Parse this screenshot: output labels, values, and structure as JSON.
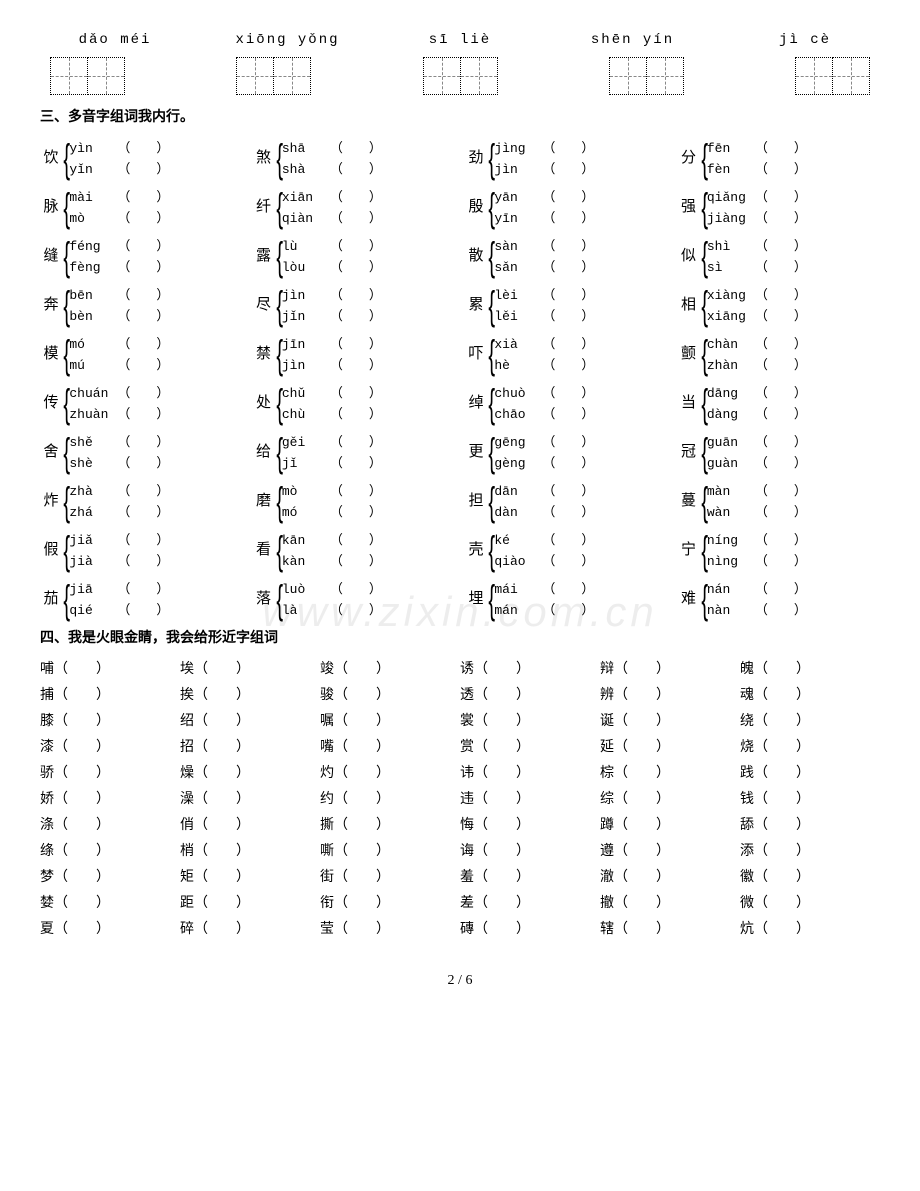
{
  "pinyin_boxes": [
    {
      "pinyin": "dǎo méi",
      "cells": 2
    },
    {
      "pinyin": "xiōng yǒng",
      "cells": 2
    },
    {
      "pinyin": "sī  liè",
      "cells": 2
    },
    {
      "pinyin": "shēn  yín",
      "cells": 2
    },
    {
      "pinyin": "jì   cè",
      "cells": 2
    }
  ],
  "section3_title": "三、多音字组词我内行。",
  "polyphonic_rows": [
    [
      {
        "char": "饮",
        "r": [
          "yìn",
          "yǐn"
        ]
      },
      {
        "char": "煞",
        "r": [
          "shā",
          "shà"
        ]
      },
      {
        "char": "劲",
        "r": [
          "jìng",
          "jìn"
        ]
      },
      {
        "char": "分",
        "r": [
          "fēn",
          "fèn"
        ]
      }
    ],
    [
      {
        "char": "脉",
        "r": [
          "mài",
          "mò"
        ]
      },
      {
        "char": "纤",
        "r": [
          "xiān",
          "qiàn"
        ]
      },
      {
        "char": "殷",
        "r": [
          "yān",
          "yīn"
        ]
      },
      {
        "char": "强",
        "r": [
          "qiǎng",
          "jiàng"
        ]
      }
    ],
    [
      {
        "char": "缝",
        "r": [
          "féng",
          "fèng"
        ]
      },
      {
        "char": "露",
        "r": [
          "lù",
          "lòu"
        ]
      },
      {
        "char": "散",
        "r": [
          "sàn",
          "sǎn"
        ]
      },
      {
        "char": "似",
        "r": [
          "shì",
          "sì"
        ]
      }
    ],
    [
      {
        "char": "奔",
        "r": [
          "bēn",
          "bèn"
        ]
      },
      {
        "char": "尽",
        "r": [
          "jìn",
          "jǐn"
        ]
      },
      {
        "char": "累",
        "r": [
          "lèi",
          "lěi"
        ]
      },
      {
        "char": "相",
        "r": [
          "xiàng",
          "xiāng"
        ]
      }
    ],
    [
      {
        "char": "模",
        "r": [
          "mó",
          "mú"
        ]
      },
      {
        "char": "禁",
        "r": [
          "jīn",
          "jìn"
        ]
      },
      {
        "char": "吓",
        "r": [
          "xià",
          "hè"
        ]
      },
      {
        "char": "颤",
        "r": [
          "chàn",
          "zhàn"
        ]
      }
    ],
    [
      {
        "char": "传",
        "r": [
          "chuán",
          "zhuàn"
        ]
      },
      {
        "char": "处",
        "r": [
          "chǔ",
          "chù"
        ]
      },
      {
        "char": "绰",
        "r": [
          "chuò",
          "chāo"
        ]
      },
      {
        "char": "当",
        "r": [
          "dāng",
          "dàng"
        ]
      }
    ],
    [
      {
        "char": "舍",
        "r": [
          "shě",
          "shè"
        ]
      },
      {
        "char": "给",
        "r": [
          "gěi",
          "jǐ"
        ]
      },
      {
        "char": "更",
        "r": [
          "gēng",
          "gèng"
        ]
      },
      {
        "char": "冠",
        "r": [
          "guān",
          "guàn"
        ]
      }
    ],
    [
      {
        "char": "炸",
        "r": [
          "zhà",
          "zhá"
        ]
      },
      {
        "char": "磨",
        "r": [
          "mò",
          "mó"
        ]
      },
      {
        "char": "担",
        "r": [
          "dān",
          "dàn"
        ]
      },
      {
        "char": "蔓",
        "r": [
          "màn",
          "wàn"
        ]
      }
    ],
    [
      {
        "char": "假",
        "r": [
          "jiǎ",
          "jià"
        ]
      },
      {
        "char": "看",
        "r": [
          "kān",
          "kàn"
        ]
      },
      {
        "char": "壳",
        "r": [
          "ké",
          "qiào"
        ]
      },
      {
        "char": "宁",
        "r": [
          "níng",
          "nìng"
        ]
      }
    ],
    [
      {
        "char": "茄",
        "r": [
          "jiā",
          "qié"
        ]
      },
      {
        "char": "落",
        "r": [
          "luò",
          "là"
        ]
      },
      {
        "char": "埋",
        "r": [
          "mái",
          "mán"
        ]
      },
      {
        "char": "难",
        "r": [
          "nán",
          "nàn"
        ]
      }
    ]
  ],
  "section4_title": "四、我是火眼金睛，我会给形近字组词",
  "xin_rows": [
    [
      "哺",
      "埃",
      "竣",
      "诱",
      "辩",
      "魄"
    ],
    [
      "捕",
      "挨",
      "骏",
      "透",
      "辨",
      "魂"
    ],
    [
      "膝",
      "绍",
      "嘱",
      "裳",
      "诞",
      "绕"
    ],
    [
      "漆",
      "招",
      "嘴",
      "赏",
      "延",
      "烧"
    ],
    [
      "骄",
      "燥",
      "灼",
      "讳",
      "棕",
      "践"
    ],
    [
      "娇",
      "澡",
      "约",
      "违",
      "综",
      "钱"
    ],
    [
      "涤",
      "俏",
      "撕",
      "悔",
      "蹲",
      "舔"
    ],
    [
      "绦",
      "梢",
      "嘶",
      "诲",
      "遵",
      "添"
    ],
    [
      "梦",
      "矩",
      "街",
      "羞",
      "澈",
      "徽"
    ],
    [
      "婪",
      "距",
      "衔",
      "差",
      "撤",
      "微"
    ],
    [
      "夏",
      "碎",
      "莹",
      "磚",
      "辖",
      "炕"
    ]
  ],
  "footer": {
    "page": "2",
    "total": "6"
  },
  "watermark": "www.zixin.com.cn"
}
